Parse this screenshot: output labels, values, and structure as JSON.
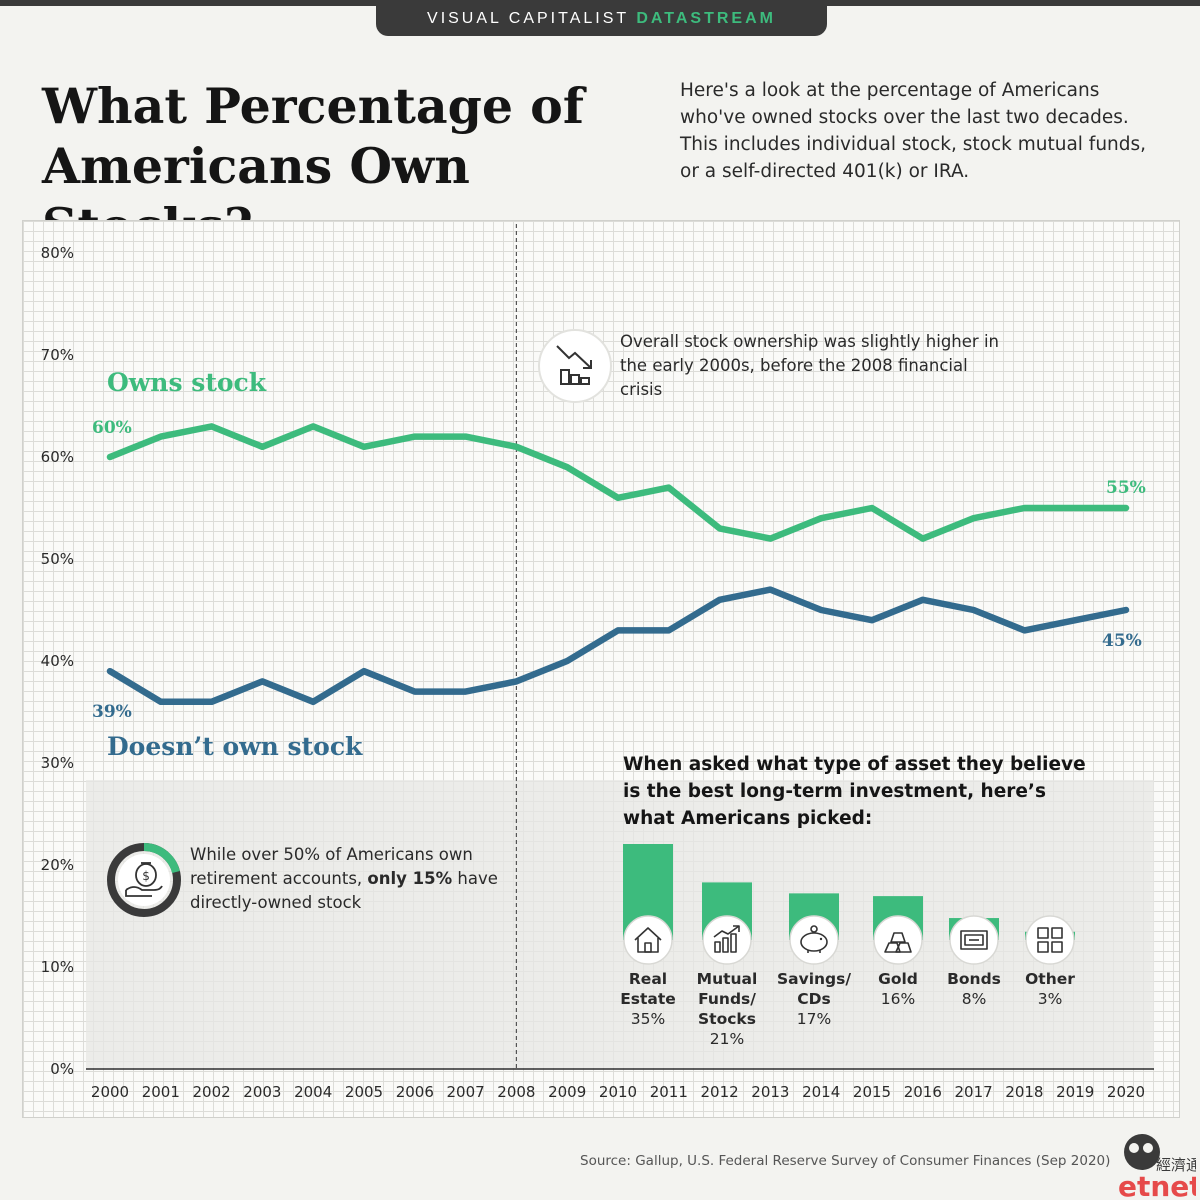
{
  "banner": {
    "brand": "VISUAL CAPITALIST",
    "accent": "DATASTREAM"
  },
  "title": "What Percentage of Americans Own Stocks?",
  "subtitle": "Here's a look at the percentage of Americans who've owned stocks over the last two decades. This includes individual stock, stock mutual funds, or a self-directed 401(k) or IRA.",
  "callouts": {
    "crisis": "Overall stock ownership was slightly higher in the early 2000s, before the 2008 financial crisis",
    "retirement_pre": "While over 50% of Americans own retirement accounts,",
    "retirement_bold": "only 15%",
    "retirement_post": "have directly-owned stock"
  },
  "source": "Source: Gallup, U.S. Federal Reserve Survey of Consumer Finances (Sep 2020)",
  "logo": {
    "chinese": "經濟通",
    "latin": "etnet"
  },
  "colors": {
    "owns": "#3dbb7d",
    "doesnt": "#336b8e",
    "bar": "#3dbb7d",
    "bar_label": "#2a2a2a",
    "axis_text": "#2a2a2a"
  },
  "icons": {
    "crisis": "declining-chart-icon",
    "retirement": "money-bag-hand-icon",
    "real_estate": "house-icon",
    "mutual_funds": "growth-chart-icon",
    "savings": "piggy-bank-icon",
    "gold": "gold-bars-icon",
    "bonds": "bond-certificate-icon",
    "other": "grid-icon"
  },
  "chart_data": [
    {
      "type": "line",
      "x": [
        "2000",
        "2001",
        "2002",
        "2003",
        "2004",
        "2005",
        "2006",
        "2007",
        "2008",
        "2009",
        "2010",
        "2011",
        "2012",
        "2013",
        "2014",
        "2015",
        "2016",
        "2017",
        "2018",
        "2019",
        "2020"
      ],
      "series": [
        {
          "name": "Owns stock",
          "values": [
            60,
            62,
            63,
            61,
            63,
            61,
            62,
            62,
            61,
            59,
            56,
            57,
            53,
            52,
            54,
            55,
            52,
            54,
            55,
            55,
            55
          ],
          "start_label": "60%",
          "end_label": "55%"
        },
        {
          "name": "Doesn’t own stock",
          "values": [
            39,
            36,
            36,
            38,
            36,
            39,
            37,
            37,
            38,
            40,
            43,
            43,
            46,
            47,
            45,
            44,
            46,
            45,
            43,
            44,
            45
          ],
          "start_label": "39%",
          "end_label": "45%"
        }
      ],
      "ylim": [
        0,
        80
      ],
      "yticks": [
        "0%",
        "10%",
        "20%",
        "30%",
        "40%",
        "50%",
        "60%",
        "70%",
        "80%"
      ],
      "ytick_values": [
        0,
        10,
        20,
        30,
        40,
        50,
        60,
        70,
        80
      ],
      "marker_year": "2008",
      "grid": true
    },
    {
      "type": "bar",
      "title": "When asked what type of asset they believe is the best long-term investment, here’s what Americans picked:",
      "categories": [
        "Real Estate",
        "Mutual Funds/ Stocks",
        "Savings/ CDs",
        "Gold",
        "Bonds",
        "Other"
      ],
      "label_lines": [
        [
          "Real",
          "Estate"
        ],
        [
          "Mutual",
          "Funds/",
          "Stocks"
        ],
        [
          "Savings/",
          "CDs"
        ],
        [
          "Gold"
        ],
        [
          "Bonds"
        ],
        [
          "Other"
        ]
      ],
      "values": [
        35,
        21,
        17,
        16,
        8,
        3
      ],
      "value_labels": [
        "35%",
        "21%",
        "17%",
        "16%",
        "8%",
        "3%"
      ]
    }
  ]
}
